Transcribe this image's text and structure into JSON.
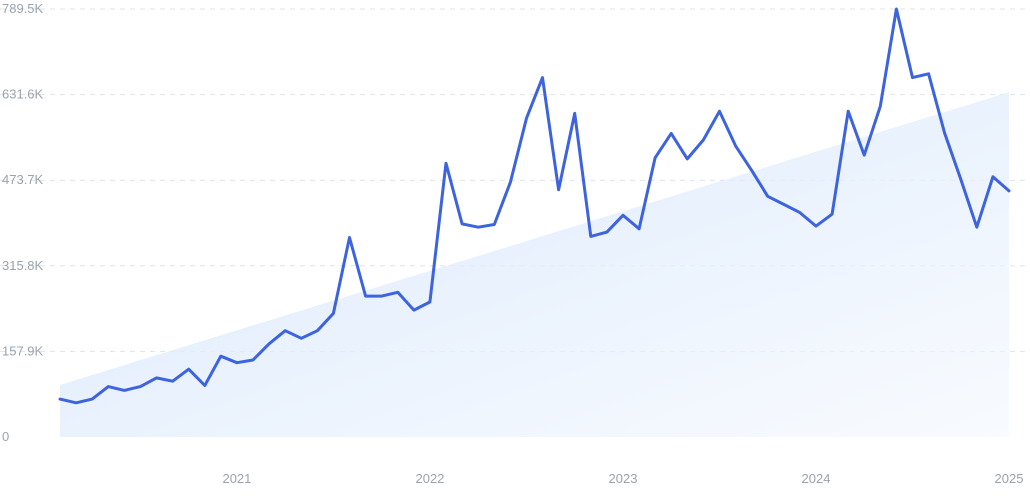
{
  "chart_data": {
    "type": "line",
    "title": "",
    "xlabel": "",
    "ylabel": "",
    "ylim": [
      0,
      789.5
    ],
    "y_unit": "K",
    "y_ticks": [
      "0",
      "157.9K",
      "315.8K",
      "473.7K",
      "631.6K",
      "789.5K"
    ],
    "y_tick_values": [
      0,
      157.9,
      315.8,
      473.7,
      631.6,
      789.5
    ],
    "x_range": [
      "2020-02",
      "2025-01"
    ],
    "x_ticks": [
      {
        "label": "2021",
        "date": "2021-01"
      },
      {
        "label": "2022",
        "date": "2022-01"
      },
      {
        "label": "2023",
        "date": "2023-01"
      },
      {
        "label": "2024",
        "date": "2024-01"
      },
      {
        "label": "2025",
        "date": "2025-01"
      }
    ],
    "grid": "horizontal dashed",
    "legend": "none",
    "line_color": "#3d63dd",
    "trend_fill_color": "#dce9fb",
    "trend": {
      "start": 96,
      "end": 636
    },
    "series": [
      {
        "x": [
          "2020-02",
          "2020-03",
          "2020-04",
          "2020-05",
          "2020-06",
          "2020-07",
          "2020-08",
          "2020-09",
          "2020-10",
          "2020-11",
          "2020-12",
          "2021-01",
          "2021-02",
          "2021-03",
          "2021-04",
          "2021-05",
          "2021-06",
          "2021-07",
          "2021-08",
          "2021-09",
          "2021-10",
          "2021-11",
          "2021-12",
          "2022-01",
          "2022-02",
          "2022-03",
          "2022-04",
          "2022-05",
          "2022-06",
          "2022-07",
          "2022-08",
          "2022-09",
          "2022-10",
          "2022-11",
          "2022-12",
          "2023-01",
          "2023-02",
          "2023-03",
          "2023-04",
          "2023-05",
          "2023-06",
          "2023-07",
          "2023-08",
          "2023-09",
          "2023-10",
          "2023-11",
          "2023-12",
          "2024-01",
          "2024-02",
          "2024-03",
          "2024-04",
          "2024-05",
          "2024-06",
          "2024-07",
          "2024-08",
          "2024-09",
          "2024-10",
          "2024-11",
          "2024-12",
          "2025-01"
        ],
        "values": [
          70,
          63,
          70,
          93,
          86,
          93,
          109,
          103,
          125,
          95,
          149,
          137,
          142,
          172,
          196,
          182,
          196,
          228,
          368,
          260,
          260,
          267,
          234,
          249,
          505,
          393,
          387,
          392,
          470,
          588,
          663,
          456,
          597,
          370,
          378,
          409,
          384,
          515,
          560,
          513,
          548,
          601,
          537,
          492,
          444,
          429,
          414,
          389,
          411,
          601,
          520,
          610,
          789.5,
          663,
          670,
          560,
          476,
          387,
          480,
          454
        ]
      }
    ]
  }
}
